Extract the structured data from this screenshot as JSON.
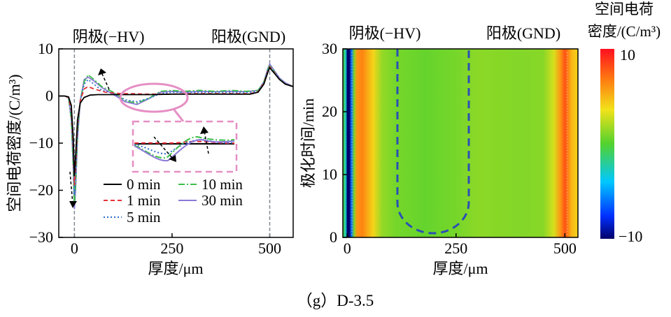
{
  "caption": "（g）D-3.5",
  "chart_data": [
    {
      "type": "line",
      "xlabel": "厚度/μm",
      "ylabel": "空间电荷密度/(C/m³)",
      "xlim": [
        -40,
        560
      ],
      "ylim": [
        -30,
        10
      ],
      "xticks": [
        0,
        250,
        500
      ],
      "yticks": [
        10,
        0,
        -10,
        -20,
        -30
      ],
      "annotations": {
        "cathode": "阴极(−HV)",
        "anode": "阳极(GND)"
      },
      "electrode_lines_x": [
        0,
        500
      ],
      "legend": {
        "placement": "bottom-center",
        "columns": 2
      },
      "inset": "zoomed view of 130–260 μm region (pink ellipse)",
      "series": [
        {
          "name": "0 min",
          "color": "#000000",
          "dash": "solid",
          "x": [
            -40,
            -25,
            -15,
            -8,
            -3,
            0,
            3,
            8,
            15,
            25,
            40,
            60,
            100,
            150,
            200,
            250,
            300,
            350,
            400,
            450,
            470,
            485,
            495,
            500,
            505,
            515,
            525,
            540,
            560
          ],
          "y": [
            0,
            0,
            -0.2,
            -2,
            -9,
            -17,
            -13,
            -5,
            -1.5,
            -0.3,
            0.2,
            0.3,
            0.3,
            0.3,
            0.3,
            0.4,
            0.4,
            0.4,
            0.4,
            0.4,
            0.8,
            2.5,
            5,
            6,
            5.5,
            4.5,
            3.5,
            2.5,
            2
          ]
        },
        {
          "name": "1 min",
          "color": "#e8303a",
          "dash": "6,4",
          "x": [
            -40,
            -25,
            -15,
            -8,
            -3,
            0,
            3,
            8,
            15,
            25,
            35,
            50,
            80,
            120,
            150,
            180,
            200,
            250,
            300,
            350,
            400,
            450,
            470,
            485,
            495,
            500,
            505,
            515,
            525,
            540,
            560
          ],
          "y": [
            0,
            0,
            -0.3,
            -3,
            -11,
            -19,
            -15,
            -6,
            -1,
            1.5,
            2,
            1.5,
            0.8,
            0.5,
            0.5,
            0.4,
            0.4,
            0.4,
            0.5,
            0.5,
            0.5,
            0.5,
            0.9,
            2.7,
            5.2,
            6.2,
            5.7,
            4.6,
            3.5,
            2.5,
            2
          ]
        },
        {
          "name": "5 min",
          "color": "#2e6fd0",
          "dash": "2,3",
          "x": [
            -40,
            -25,
            -15,
            -8,
            -3,
            0,
            3,
            8,
            15,
            25,
            35,
            50,
            70,
            100,
            130,
            160,
            190,
            220,
            250,
            300,
            350,
            400,
            450,
            470,
            485,
            495,
            500,
            505,
            515,
            525,
            540,
            560
          ],
          "y": [
            0,
            0,
            -0.3,
            -4,
            -13,
            -21,
            -17,
            -7,
            -1,
            2.5,
            3.5,
            2.5,
            1.2,
            0.6,
            -0.8,
            -1.2,
            -0.5,
            0.5,
            0.8,
            0.8,
            0.8,
            0.8,
            0.8,
            1,
            2.8,
            5.4,
            6.4,
            5.8,
            4.7,
            3.6,
            2.6,
            2
          ]
        },
        {
          "name": "10 min",
          "color": "#3cbf4a",
          "dash": "9,3,2,3",
          "x": [
            -40,
            -25,
            -15,
            -8,
            -3,
            0,
            3,
            8,
            15,
            25,
            35,
            50,
            70,
            100,
            130,
            160,
            190,
            220,
            250,
            280,
            320,
            360,
            400,
            440,
            470,
            485,
            495,
            500,
            505,
            515,
            525,
            540,
            560
          ],
          "y": [
            0,
            0,
            -0.4,
            -5,
            -15,
            -23,
            -19,
            -8,
            -1,
            3,
            4.5,
            3.5,
            2,
            0.8,
            -1,
            -1.5,
            -0.5,
            1,
            1.2,
            1,
            1.2,
            1,
            1.2,
            1,
            1.2,
            3,
            5.6,
            6.6,
            6,
            4.8,
            3.6,
            2.6,
            2
          ]
        },
        {
          "name": "30 min",
          "color": "#8c78d8",
          "dash": "solid",
          "x": [
            -40,
            -25,
            -15,
            -8,
            -3,
            0,
            3,
            8,
            15,
            25,
            35,
            50,
            70,
            90,
            110,
            130,
            160,
            190,
            220,
            250,
            280,
            320,
            360,
            400,
            440,
            470,
            485,
            495,
            500,
            505,
            515,
            525,
            540,
            560
          ],
          "y": [
            0,
            0,
            -0.4,
            -5,
            -15,
            -24,
            -20,
            -9,
            -1,
            3.5,
            4,
            3.2,
            1.8,
            0.8,
            -0.2,
            -1.2,
            -1.8,
            -0.6,
            0.8,
            1,
            0.8,
            1,
            0.9,
            1,
            0.9,
            1.2,
            3,
            5.8,
            6.8,
            6.2,
            5,
            3.8,
            2.8,
            2
          ]
        }
      ]
    },
    {
      "type": "heatmap",
      "xlabel": "厚度/μm",
      "ylabel": "极化时间/min",
      "xlim": [
        -10,
        530
      ],
      "ylim": [
        0,
        30
      ],
      "xticks": [
        0,
        250,
        500
      ],
      "yticks": [
        0,
        10,
        20,
        30
      ],
      "annotations": {
        "cathode": "阴极(−HV)",
        "anode": "阳极(GND)"
      },
      "colorbar": {
        "title": "空间电荷密度/(C/m³)",
        "min": -10,
        "max": 10,
        "ticks": [
          10,
          -10
        ]
      },
      "profile_x": [
        -10,
        -3,
        0,
        5,
        10,
        16,
        22,
        35,
        60,
        80,
        110,
        150,
        180,
        210,
        250,
        300,
        350,
        400,
        450,
        475,
        490,
        500,
        508,
        515,
        530
      ],
      "profile_v": [
        0,
        -3,
        -10,
        -10,
        -6,
        1,
        6,
        6.5,
        4,
        1.5,
        0.8,
        0.6,
        0.4,
        0.6,
        0.8,
        1.3,
        1.2,
        1.1,
        1.2,
        3,
        6,
        8,
        6.5,
        5,
        4
      ],
      "dashed_region": "U-shaped outline from 100 to 270 μm, bottom near 0.5 min"
    }
  ]
}
